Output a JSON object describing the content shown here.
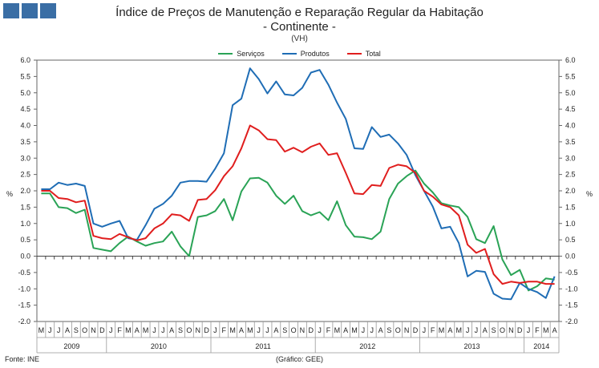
{
  "title": "Índice de Preços de Manutenção e Reparação Regular da Habitação",
  "subtitle": "- Continente -",
  "unit": "(VH)",
  "source": "Fonte: INE",
  "credit": "(Gráfico: GEE)",
  "colors": {
    "logo": "#3a6ea5",
    "servicos": "#2aa356",
    "produtos": "#1f6db5",
    "total": "#e01e1e"
  },
  "chart_data": {
    "type": "line",
    "ylabel_left": "%",
    "ylabel_right": "%",
    "ylim": [
      -2.0,
      6.0
    ],
    "yticks": [
      "6.0",
      "5.5",
      "5.0",
      "4.5",
      "4.0",
      "3.5",
      "3.0",
      "2.5",
      "2.0",
      "1.5",
      "1.0",
      "0.5",
      "0.0",
      "-0.5",
      "-1.0",
      "-1.5",
      "-2.0"
    ],
    "x": [
      "M",
      "J",
      "J",
      "A",
      "S",
      "O",
      "N",
      "D",
      "J",
      "F",
      "M",
      "A",
      "M",
      "J",
      "J",
      "A",
      "S",
      "O",
      "N",
      "D",
      "J",
      "F",
      "M",
      "A",
      "M",
      "J",
      "J",
      "A",
      "S",
      "O",
      "N",
      "D",
      "J",
      "F",
      "M",
      "A",
      "M",
      "J",
      "J",
      "A",
      "S",
      "O",
      "N",
      "D",
      "J",
      "F",
      "M",
      "A",
      "M",
      "J",
      "J",
      "A",
      "S",
      "O",
      "N",
      "D",
      "J",
      "F",
      "M",
      "A"
    ],
    "years": [
      {
        "label": "2009",
        "start": 0,
        "end": 7
      },
      {
        "label": "2010",
        "start": 8,
        "end": 19
      },
      {
        "label": "2011",
        "start": 20,
        "end": 31
      },
      {
        "label": "2012",
        "start": 32,
        "end": 43
      },
      {
        "label": "2013",
        "start": 44,
        "end": 55
      },
      {
        "label": "2014",
        "start": 56,
        "end": 59
      }
    ],
    "legend_position": "top-center",
    "grid": false,
    "series": [
      {
        "name": "Serviços",
        "color": "#2aa356",
        "values": [
          1.92,
          1.92,
          1.5,
          1.47,
          1.32,
          1.42,
          0.25,
          0.2,
          0.15,
          0.4,
          0.6,
          0.45,
          0.32,
          0.4,
          0.45,
          0.75,
          0.3,
          0.0,
          1.2,
          1.25,
          1.38,
          1.75,
          1.1,
          1.98,
          2.38,
          2.4,
          2.25,
          1.85,
          1.6,
          1.85,
          1.38,
          1.25,
          1.35,
          1.1,
          1.68,
          0.95,
          0.6,
          0.58,
          0.52,
          0.75,
          1.75,
          2.22,
          2.45,
          2.62,
          2.22,
          1.95,
          1.62,
          1.55,
          1.5,
          1.2,
          0.52,
          0.4,
          0.92,
          -0.1,
          -0.58,
          -0.42,
          -1.05,
          -0.92,
          -0.68,
          -0.72
        ]
      },
      {
        "name": "Produtos",
        "color": "#1f6db5",
        "values": [
          2.05,
          2.05,
          2.25,
          2.18,
          2.22,
          2.15,
          1.0,
          0.9,
          1.0,
          1.08,
          0.55,
          0.5,
          0.95,
          1.45,
          1.6,
          1.85,
          2.25,
          2.3,
          2.3,
          2.28,
          2.68,
          3.15,
          4.62,
          4.82,
          5.75,
          5.42,
          4.98,
          5.35,
          4.95,
          4.92,
          5.15,
          5.62,
          5.7,
          5.25,
          4.7,
          4.2,
          3.3,
          3.28,
          3.95,
          3.65,
          3.72,
          3.45,
          3.1,
          2.48,
          2.0,
          1.52,
          0.85,
          0.9,
          0.4,
          -0.62,
          -0.45,
          -0.48,
          -1.15,
          -1.3,
          -1.32,
          -0.82,
          -1.0,
          -1.1,
          -1.28,
          -0.62
        ]
      },
      {
        "name": "Total",
        "color": "#e01e1e",
        "values": [
          2.0,
          2.0,
          1.78,
          1.75,
          1.65,
          1.7,
          0.62,
          0.55,
          0.52,
          0.68,
          0.58,
          0.48,
          0.55,
          0.85,
          1.0,
          1.28,
          1.25,
          1.08,
          1.72,
          1.75,
          2.02,
          2.45,
          2.75,
          3.3,
          4.0,
          3.85,
          3.58,
          3.55,
          3.2,
          3.32,
          3.18,
          3.35,
          3.45,
          3.1,
          3.15,
          2.55,
          1.92,
          1.9,
          2.18,
          2.15,
          2.7,
          2.8,
          2.75,
          2.55,
          2.0,
          1.82,
          1.58,
          1.5,
          1.25,
          0.35,
          0.1,
          0.22,
          -0.55,
          -0.85,
          -0.78,
          -0.82,
          -0.78,
          -0.78,
          -0.85,
          -0.85
        ]
      }
    ]
  }
}
